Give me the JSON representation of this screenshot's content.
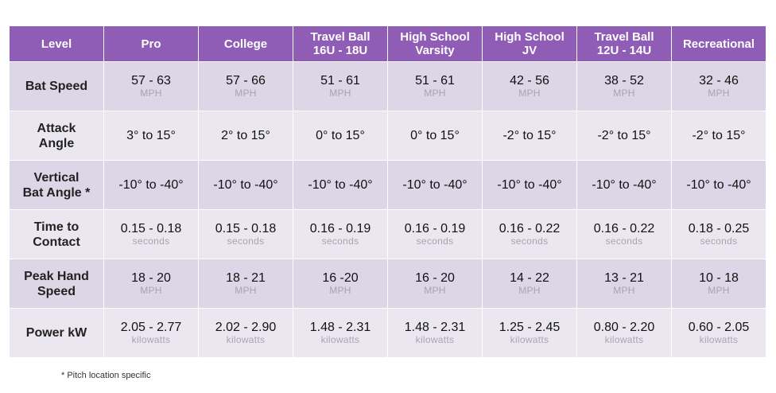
{
  "columns": [
    "Level",
    "Pro",
    "College",
    "Travel Ball\n16U - 18U",
    "High School\nVarsity",
    "High School\nJV",
    "Travel Ball\n12U - 14U",
    "Recreational"
  ],
  "rows": [
    {
      "label": "Bat Speed",
      "cells": [
        {
          "value": "57 - 63",
          "unit": "MPH"
        },
        {
          "value": "57 - 66",
          "unit": "MPH"
        },
        {
          "value": "51 - 61",
          "unit": "MPH"
        },
        {
          "value": "51 - 61",
          "unit": "MPH"
        },
        {
          "value": "42 - 56",
          "unit": "MPH"
        },
        {
          "value": "38 - 52",
          "unit": "MPH"
        },
        {
          "value": "32 - 46",
          "unit": "MPH"
        }
      ]
    },
    {
      "label": "Attack\nAngle",
      "cells": [
        {
          "value": "3° to 15°"
        },
        {
          "value": "2° to 15°"
        },
        {
          "value": "0° to 15°"
        },
        {
          "value": "0° to 15°"
        },
        {
          "value": "-2° to 15°"
        },
        {
          "value": "-2° to 15°"
        },
        {
          "value": "-2° to 15°"
        }
      ]
    },
    {
      "label": "Vertical\nBat Angle *",
      "cells": [
        {
          "value": "-10° to -40°"
        },
        {
          "value": "-10° to -40°"
        },
        {
          "value": "-10° to -40°"
        },
        {
          "value": "-10° to -40°"
        },
        {
          "value": "-10° to -40°"
        },
        {
          "value": "-10° to -40°"
        },
        {
          "value": "-10° to -40°"
        }
      ]
    },
    {
      "label": "Time to\nContact",
      "cells": [
        {
          "value": "0.15 - 0.18",
          "unit": "seconds"
        },
        {
          "value": "0.15 - 0.18",
          "unit": "seconds"
        },
        {
          "value": "0.16 - 0.19",
          "unit": "seconds"
        },
        {
          "value": "0.16 - 0.19",
          "unit": "seconds"
        },
        {
          "value": "0.16 - 0.22",
          "unit": "seconds"
        },
        {
          "value": "0.16 - 0.22",
          "unit": "seconds"
        },
        {
          "value": "0.18 - 0.25",
          "unit": "seconds"
        }
      ]
    },
    {
      "label": "Peak Hand\nSpeed",
      "cells": [
        {
          "value": "18 - 20",
          "unit": "MPH"
        },
        {
          "value": "18 - 21",
          "unit": "MPH"
        },
        {
          "value": "16 -20",
          "unit": "MPH"
        },
        {
          "value": "16 - 20",
          "unit": "MPH"
        },
        {
          "value": "14 - 22",
          "unit": "MPH"
        },
        {
          "value": "13 - 21",
          "unit": "MPH"
        },
        {
          "value": "10 - 18",
          "unit": "MPH"
        }
      ]
    },
    {
      "label": "Power kW",
      "cells": [
        {
          "value": "2.05 - 2.77",
          "unit": "kilowatts"
        },
        {
          "value": "2.02 - 2.90",
          "unit": "kilowatts"
        },
        {
          "value": "1.48 - 2.31",
          "unit": "kilowatts"
        },
        {
          "value": "1.48 - 2.31",
          "unit": "kilowatts"
        },
        {
          "value": "1.25 - 2.45",
          "unit": "kilowatts"
        },
        {
          "value": "0.80 - 2.20",
          "unit": "kilowatts"
        },
        {
          "value": "0.60 - 2.05",
          "unit": "kilowatts"
        }
      ]
    }
  ],
  "footnote": "* Pitch location specific",
  "colors": {
    "header_bg": "#8f5db5",
    "row_odd": "#ddd6e6",
    "row_even": "#ebe7f0",
    "unit_text": "#a9a3b0"
  }
}
